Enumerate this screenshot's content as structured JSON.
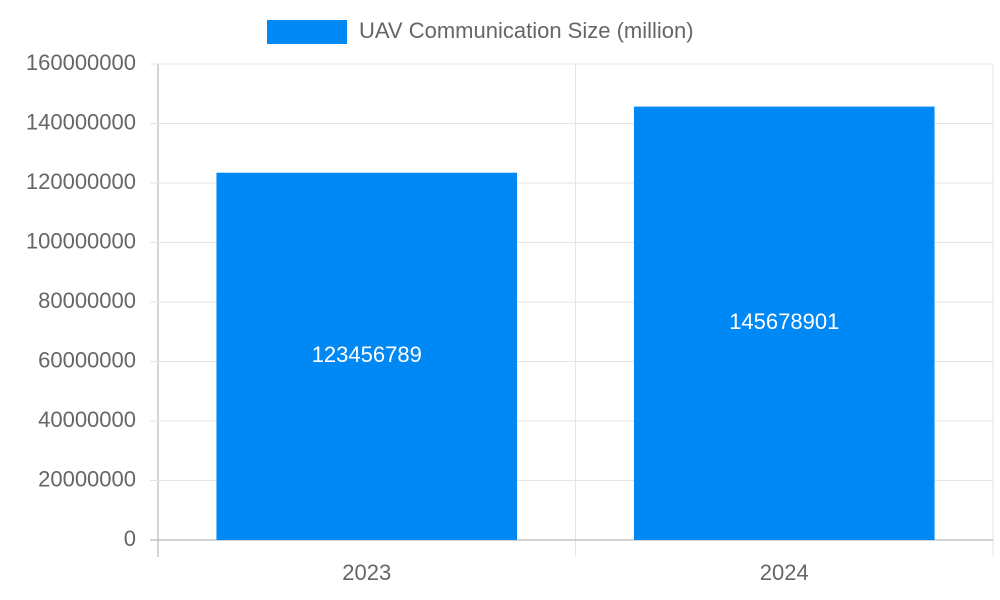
{
  "chart_data": {
    "type": "bar",
    "categories": [
      "2023",
      "2024"
    ],
    "series": [
      {
        "name": "UAV Communication Size (million)",
        "color": "#0088f5",
        "values": [
          123456789,
          145678901
        ]
      }
    ],
    "ylim": [
      0,
      160000000
    ],
    "yticks": [
      0,
      20000000,
      40000000,
      60000000,
      80000000,
      100000000,
      120000000,
      140000000,
      160000000
    ],
    "grid": true,
    "legend": "top"
  }
}
